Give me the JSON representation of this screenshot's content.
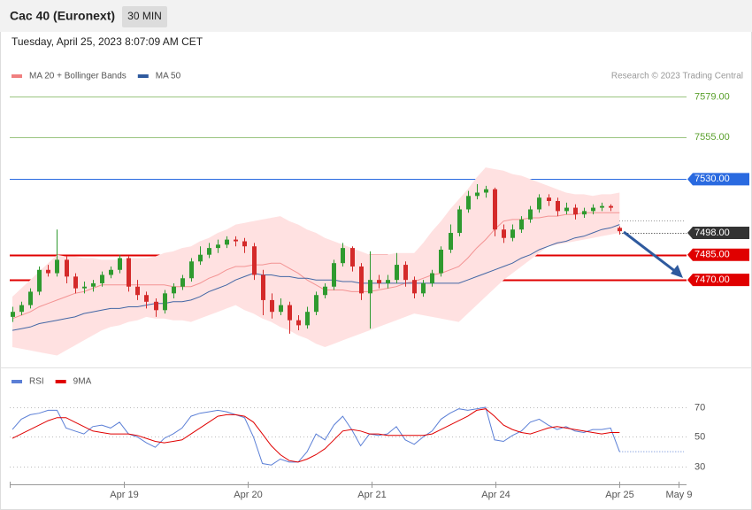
{
  "header": {
    "title": "Cac 40 (Euronext)",
    "timeframe": "30 MIN",
    "timestamp": "Tuesday, April 25, 2023 8:07:09 AM CET"
  },
  "chart_data": [
    {
      "type": "candlestick",
      "annotation": "Research © 2023 Trading Central",
      "up_color": "#2f9a2f",
      "down_color": "#d42a2a",
      "band_color": "#ffe1e1",
      "xlim": [
        -0.3,
        75.5
      ],
      "ylim": [
        7420,
        7585
      ],
      "candles": [
        [
          7448,
          7454,
          7445,
          7451
        ],
        [
          7451,
          7457,
          7449,
          7455
        ],
        [
          7455,
          7465,
          7453,
          7463
        ],
        [
          7463,
          7478,
          7461,
          7476
        ],
        [
          7476,
          7479,
          7472,
          7474
        ],
        [
          7474,
          7500,
          7472,
          7482
        ],
        [
          7482,
          7484,
          7468,
          7472
        ],
        [
          7472,
          7474,
          7462,
          7465
        ],
        [
          7465,
          7469,
          7462,
          7466
        ],
        [
          7466,
          7470,
          7463,
          7468
        ],
        [
          7468,
          7475,
          7466,
          7473
        ],
        [
          7473,
          7478,
          7471,
          7476
        ],
        [
          7476,
          7485,
          7474,
          7483
        ],
        [
          7483,
          7484,
          7463,
          7466
        ],
        [
          7466,
          7470,
          7458,
          7461
        ],
        [
          7461,
          7463,
          7453,
          7457
        ],
        [
          7457,
          7459,
          7448,
          7452
        ],
        [
          7452,
          7464,
          7450,
          7462
        ],
        [
          7462,
          7468,
          7459,
          7466
        ],
        [
          7466,
          7473,
          7464,
          7471
        ],
        [
          7471,
          7483,
          7469,
          7481
        ],
        [
          7481,
          7490,
          7479,
          7485
        ],
        [
          7485,
          7492,
          7483,
          7489
        ],
        [
          7489,
          7494,
          7486,
          7491
        ],
        [
          7491,
          7496,
          7489,
          7494
        ],
        [
          7494,
          7496,
          7490,
          7493
        ],
        [
          7493,
          7495,
          7486,
          7490
        ],
        [
          7490,
          7492,
          7470,
          7473
        ],
        [
          7473,
          7476,
          7449,
          7458
        ],
        [
          7458,
          7462,
          7447,
          7451
        ],
        [
          7451,
          7459,
          7449,
          7455
        ],
        [
          7455,
          7457,
          7438,
          7446
        ],
        [
          7446,
          7449,
          7440,
          7443
        ],
        [
          7443,
          7454,
          7441,
          7451
        ],
        [
          7451,
          7463,
          7449,
          7461
        ],
        [
          7461,
          7468,
          7459,
          7466
        ],
        [
          7466,
          7482,
          7464,
          7480
        ],
        [
          7480,
          7492,
          7478,
          7489
        ],
        [
          7489,
          7490,
          7475,
          7478
        ],
        [
          7478,
          7480,
          7458,
          7462
        ],
        [
          7462,
          7487,
          7441,
          7470
        ],
        [
          7470,
          7473,
          7465,
          7468
        ],
        [
          7468,
          7473,
          7465,
          7470
        ],
        [
          7470,
          7486,
          7468,
          7479
        ],
        [
          7479,
          7481,
          7466,
          7470
        ],
        [
          7470,
          7472,
          7459,
          7462
        ],
        [
          7462,
          7470,
          7460,
          7468
        ],
        [
          7468,
          7476,
          7466,
          7474
        ],
        [
          7474,
          7490,
          7472,
          7488
        ],
        [
          7488,
          7503,
          7486,
          7498
        ],
        [
          7498,
          7514,
          7496,
          7512
        ],
        [
          7512,
          7523,
          7510,
          7520
        ],
        [
          7520,
          7527,
          7518,
          7522
        ],
        [
          7522,
          7526,
          7519,
          7524
        ],
        [
          7524,
          7525,
          7496,
          7500
        ],
        [
          7500,
          7503,
          7492,
          7495
        ],
        [
          7495,
          7503,
          7493,
          7500
        ],
        [
          7500,
          7508,
          7498,
          7506
        ],
        [
          7506,
          7514,
          7504,
          7512
        ],
        [
          7512,
          7521,
          7510,
          7519
        ],
        [
          7519,
          7521,
          7514,
          7517
        ],
        [
          7517,
          7519,
          7508,
          7511
        ],
        [
          7511,
          7516,
          7509,
          7513
        ],
        [
          7513,
          7515,
          7506,
          7509
        ],
        [
          7509,
          7513,
          7507,
          7511
        ],
        [
          7511,
          7515,
          7509,
          7513
        ],
        [
          7513,
          7516,
          7511,
          7514
        ],
        [
          7514,
          7515,
          7511,
          7513
        ],
        [
          7501,
          7502,
          7497,
          7499
        ]
      ],
      "series": [
        {
          "name": "MA 20 + Bollinger Bands",
          "color": "#f08080",
          "values": [
            7447,
            7449,
            7451,
            7454,
            7456,
            7458,
            7460,
            7462,
            7463,
            7465,
            7467,
            7467,
            7467,
            7467,
            7467,
            7467,
            7467,
            7467,
            7466,
            7466,
            7466,
            7468,
            7471,
            7473,
            7476,
            7478,
            7478,
            7479,
            7479,
            7480,
            7480,
            7477,
            7474,
            7470,
            7467,
            7464,
            7464,
            7464,
            7463,
            7463,
            7463,
            7464,
            7465,
            7466,
            7468,
            7469,
            7471,
            7473,
            7474,
            7476,
            7478,
            7483,
            7489,
            7494,
            7500,
            7505,
            7506,
            7506,
            7507,
            7507,
            7508,
            7508,
            7509,
            7509,
            7510,
            7510,
            7510,
            7510,
            7510
          ],
          "upper": [
            7460,
            7465,
            7470,
            7475,
            7480,
            7485,
            7484,
            7484,
            7483,
            7483,
            7482,
            7482,
            7482,
            7483,
            7483,
            7483,
            7484,
            7486,
            7487,
            7489,
            7490,
            7493,
            7495,
            7498,
            7500,
            7503,
            7504,
            7505,
            7506,
            7507,
            7508,
            7505,
            7503,
            7500,
            7498,
            7495,
            7493,
            7491,
            7489,
            7487,
            7485,
            7485,
            7485,
            7486,
            7486,
            7486,
            7492,
            7499,
            7505,
            7512,
            7518,
            7524,
            7531,
            7537,
            7536,
            7535,
            7533,
            7532,
            7530,
            7528,
            7526,
            7524,
            7522,
            7521,
            7521,
            7520,
            7521,
            7521,
            7522
          ],
          "lower": [
            7430,
            7429,
            7428,
            7427,
            7426,
            7425,
            7428,
            7431,
            7434,
            7437,
            7440,
            7442,
            7443,
            7445,
            7446,
            7448,
            7447,
            7447,
            7446,
            7446,
            7445,
            7447,
            7449,
            7451,
            7453,
            7455,
            7452,
            7450,
            7447,
            7445,
            7442,
            7440,
            7437,
            7435,
            7432,
            7430,
            7432,
            7434,
            7436,
            7438,
            7440,
            7442,
            7444,
            7446,
            7448,
            7450,
            7449,
            7448,
            7447,
            7446,
            7445,
            7450,
            7455,
            7460,
            7465,
            7470,
            7474,
            7478,
            7482,
            7486,
            7490,
            7491,
            7492,
            7493,
            7494,
            7495,
            7496,
            7497,
            7498
          ]
        },
        {
          "name": "MA 50",
          "color": "#2f5a9e",
          "values": [
            7440,
            7441,
            7442,
            7444,
            7445,
            7446,
            7447,
            7448,
            7450,
            7451,
            7452,
            7453,
            7453,
            7454,
            7454,
            7455,
            7456,
            7456,
            7457,
            7457,
            7458,
            7460,
            7463,
            7465,
            7467,
            7470,
            7472,
            7474,
            7473,
            7473,
            7472,
            7472,
            7471,
            7471,
            7470,
            7470,
            7470,
            7469,
            7469,
            7468,
            7468,
            7468,
            7468,
            7468,
            7468,
            7468,
            7468,
            7468,
            7468,
            7468,
            7468,
            7470,
            7472,
            7474,
            7476,
            7478,
            7480,
            7483,
            7485,
            7488,
            7490,
            7492,
            7493,
            7495,
            7496,
            7498,
            7500,
            7501,
            7503
          ]
        }
      ],
      "levels": [
        {
          "value": 7579,
          "label": "7579.00",
          "color": "#5aa02c",
          "line": "solid",
          "boxed": false
        },
        {
          "value": 7555,
          "label": "7555.00",
          "color": "#5aa02c",
          "line": "solid",
          "boxed": false
        },
        {
          "value": 7530,
          "label": "7530.00",
          "color": "#2a6ae0",
          "line": "solid",
          "boxed": true
        },
        {
          "value": 7498,
          "label": "7498.00",
          "color": "#333333",
          "line": "dotted",
          "boxed": true
        },
        {
          "value": 7485,
          "label": "7485.00",
          "color": "#e00000",
          "line": "solid",
          "boxed": true
        },
        {
          "value": 7470,
          "label": "7470.00",
          "color": "#e00000",
          "line": "solid",
          "boxed": true
        }
      ]
    },
    {
      "type": "line",
      "xlim": [
        -0.3,
        75.5
      ],
      "ylim": [
        20,
        79
      ],
      "yticks": [
        70,
        50,
        30
      ],
      "xticks": [
        {
          "value": 12.5,
          "label": "Apr 19"
        },
        {
          "value": 26.4,
          "label": "Apr 20"
        },
        {
          "value": 40.2,
          "label": "Apr 21"
        },
        {
          "value": 54.1,
          "label": "Apr 24"
        },
        {
          "value": 68,
          "label": "Apr 25"
        },
        {
          "value": 74.6,
          "label": "May 9"
        }
      ],
      "series": [
        {
          "name": "RSI",
          "color": "#5b7fd6",
          "values": [
            55,
            62,
            65,
            66,
            68,
            68,
            56,
            54,
            52,
            57,
            58,
            56,
            60,
            52,
            50,
            46,
            43,
            49,
            52,
            56,
            64,
            66,
            67,
            68,
            67,
            65,
            63,
            50,
            32,
            31,
            35,
            33,
            33,
            40,
            52,
            48,
            58,
            64,
            55,
            44,
            52,
            51,
            52,
            57,
            48,
            45,
            50,
            54,
            62,
            66,
            69,
            68,
            69,
            70,
            48,
            47,
            51,
            54,
            60,
            62,
            58,
            55,
            57,
            54,
            53,
            55,
            55,
            56,
            40
          ]
        },
        {
          "name": "9MA",
          "color": "#e00000",
          "values": [
            49,
            52,
            55,
            58,
            61,
            63,
            63,
            60,
            57,
            54,
            53,
            52,
            52,
            52,
            51,
            49,
            47,
            46,
            47,
            48,
            52,
            56,
            60,
            64,
            65,
            65,
            64,
            60,
            52,
            44,
            38,
            34,
            33,
            35,
            38,
            42,
            48,
            54,
            55,
            54,
            52,
            52,
            51,
            51,
            51,
            51,
            51,
            52,
            55,
            58,
            61,
            64,
            68,
            69,
            64,
            58,
            55,
            53,
            52,
            54,
            56,
            57,
            56,
            55,
            54,
            53,
            52,
            53,
            53
          ]
        }
      ]
    }
  ]
}
